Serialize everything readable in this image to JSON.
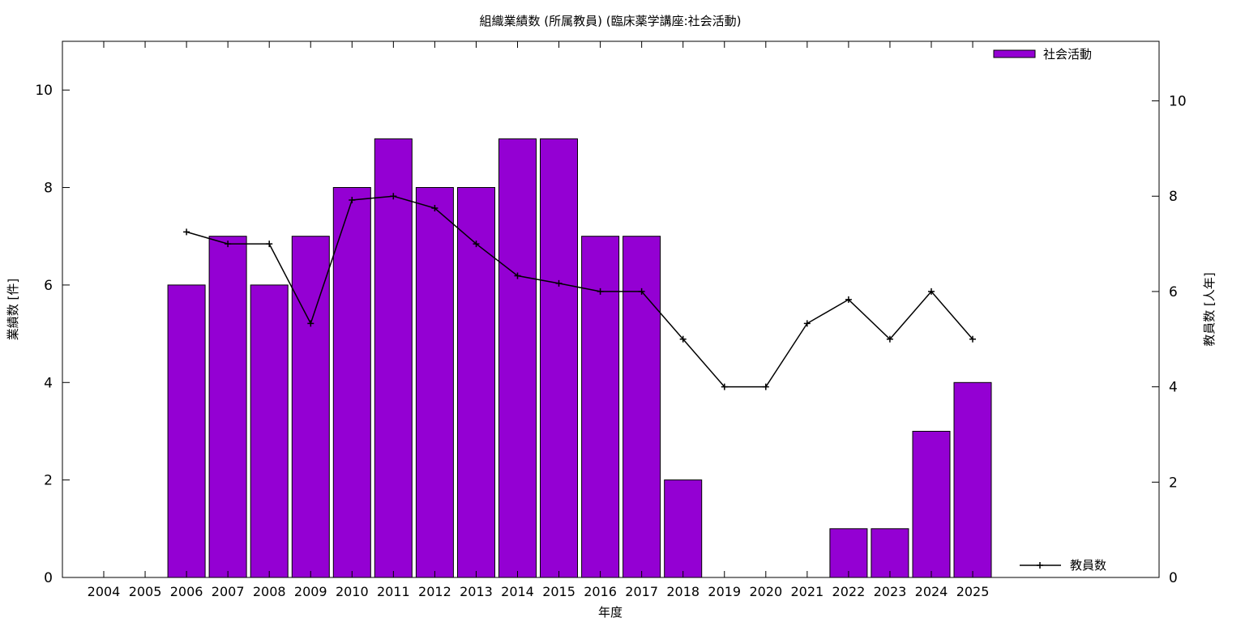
{
  "chart_data": {
    "type": "bar",
    "title": "組織業績数 (所属教員) (臨床薬学講座:社会活動)",
    "xlabel": "年度",
    "ylabel": "業績数 [件]",
    "y2label": "教員数 [人年]",
    "categories": [
      "2004",
      "2005",
      "2006",
      "2007",
      "2008",
      "2009",
      "2010",
      "2011",
      "2012",
      "2013",
      "2014",
      "2015",
      "2016",
      "2017",
      "2018",
      "2019",
      "2020",
      "2021",
      "2022",
      "2023",
      "2024",
      "2025"
    ],
    "series": [
      {
        "name": "社会活動",
        "type": "bar",
        "axis": "y",
        "color": "#9400D3",
        "values": [
          0,
          0,
          6,
          7,
          6,
          7,
          8,
          9,
          8,
          8,
          9,
          9,
          7,
          7,
          2,
          0,
          0,
          0,
          1,
          1,
          3,
          4
        ]
      },
      {
        "name": "教員数",
        "type": "line",
        "axis": "y2",
        "color": "#000000",
        "marker": "plus",
        "values": [
          null,
          null,
          7.25,
          7,
          7,
          5.33,
          7.92,
          8,
          7.75,
          7,
          6.33,
          6.17,
          6,
          6,
          5,
          4,
          4,
          5.33,
          5.83,
          5,
          6,
          5
        ]
      }
    ],
    "ylim": [
      0,
      11
    ],
    "y2lim": [
      0,
      11.25
    ],
    "yticks": [
      0,
      2,
      4,
      6,
      8,
      10
    ],
    "y2ticks": [
      0,
      2,
      4,
      6,
      8,
      10
    ],
    "grid": false,
    "legend": {
      "bar_position": "top-right",
      "line_position": "bottom-right"
    }
  }
}
